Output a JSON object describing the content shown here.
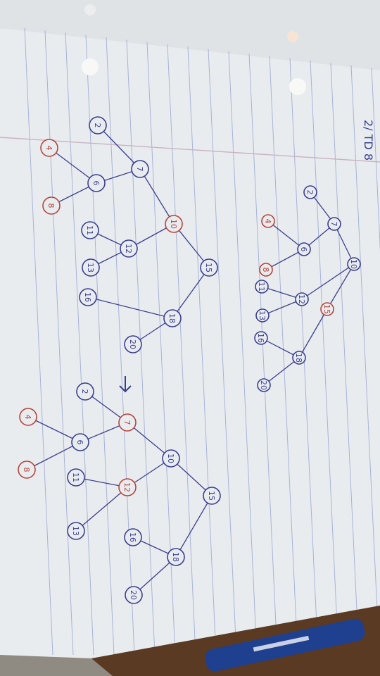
{
  "photo": {
    "title": "2/ TD 8",
    "paper_color": "#e9ecef",
    "line_color": "#8c9bcf",
    "ink_blue": "#3a3f8f",
    "ink_red": "#b8443a"
  },
  "trees": [
    {
      "name": "tree-top-right",
      "nodes": [
        {
          "label": "2"
        },
        {
          "label": "7"
        },
        {
          "label": "4"
        },
        {
          "label": "6"
        },
        {
          "label": "8"
        },
        {
          "label": "10"
        },
        {
          "label": "11"
        },
        {
          "label": "12"
        },
        {
          "label": "13"
        },
        {
          "label": "15"
        },
        {
          "label": "16"
        },
        {
          "label": "18"
        },
        {
          "label": "20"
        }
      ]
    },
    {
      "name": "tree-middle",
      "nodes": [
        {
          "label": "2"
        },
        {
          "label": "7"
        },
        {
          "label": "4"
        },
        {
          "label": "6"
        },
        {
          "label": "8"
        },
        {
          "label": "10"
        },
        {
          "label": "11"
        },
        {
          "label": "12"
        },
        {
          "label": "13"
        },
        {
          "label": "15"
        },
        {
          "label": "16"
        },
        {
          "label": "18"
        },
        {
          "label": "20"
        }
      ]
    },
    {
      "name": "tree-bottom",
      "nodes": [
        {
          "label": "2"
        },
        {
          "label": "7"
        },
        {
          "label": "4"
        },
        {
          "label": "6"
        },
        {
          "label": "8"
        },
        {
          "label": "10"
        },
        {
          "label": "11"
        },
        {
          "label": "12"
        },
        {
          "label": "13"
        },
        {
          "label": "15"
        },
        {
          "label": "16"
        },
        {
          "label": "18"
        },
        {
          "label": "20"
        }
      ]
    }
  ]
}
